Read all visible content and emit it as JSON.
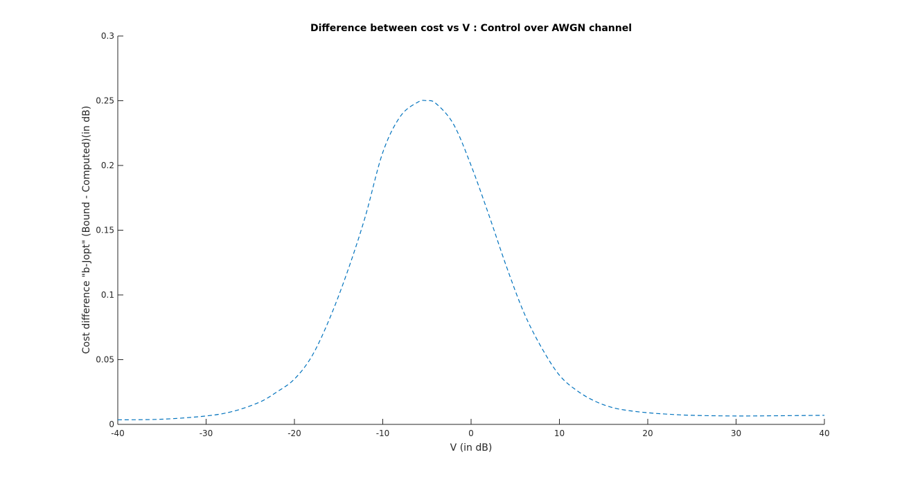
{
  "chart_data": {
    "type": "line",
    "title": "Difference between cost vs V : Control over AWGN channel",
    "xlabel": "V (in dB)",
    "ylabel": "Cost difference \"b-Jopt\" (Bound - Computed)(in dB)",
    "xlim": [
      -40,
      40
    ],
    "ylim": [
      0,
      0.3
    ],
    "xticks": [
      -40,
      -30,
      -20,
      -10,
      0,
      10,
      20,
      30,
      40
    ],
    "xtick_labels": [
      "-40",
      "-30",
      "-20",
      "-10",
      "0",
      "10",
      "20",
      "30",
      "40"
    ],
    "yticks": [
      0,
      0.05,
      0.1,
      0.15,
      0.2,
      0.25,
      0.3
    ],
    "ytick_labels": [
      "0",
      "0.05",
      "0.1",
      "0.15",
      "0.2",
      "0.25",
      "0.3"
    ],
    "grid": false,
    "series": [
      {
        "line_style": "dashed",
        "color": "#0072BD",
        "x": [
          -40,
          -35,
          -30,
          -27,
          -24,
          -22,
          -20,
          -18,
          -16,
          -14,
          -12,
          -10,
          -8,
          -6,
          -5,
          -4,
          -2,
          0,
          2,
          4,
          6,
          8,
          10,
          12,
          14,
          16,
          18,
          20,
          22,
          25,
          30,
          35,
          40
        ],
        "y": [
          0.0035,
          0.004,
          0.0065,
          0.01,
          0.017,
          0.025,
          0.035,
          0.053,
          0.082,
          0.118,
          0.16,
          0.21,
          0.238,
          0.249,
          0.25,
          0.248,
          0.232,
          0.2,
          0.162,
          0.122,
          0.086,
          0.059,
          0.038,
          0.026,
          0.018,
          0.013,
          0.0105,
          0.009,
          0.008,
          0.007,
          0.0065,
          0.0067,
          0.007
        ]
      }
    ]
  }
}
